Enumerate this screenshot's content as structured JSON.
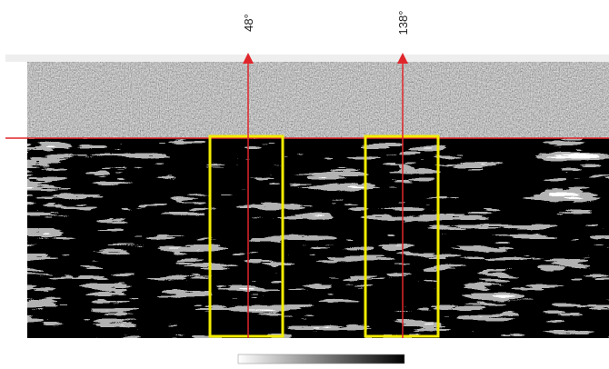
{
  "figure": {
    "markers": [
      {
        "label": "48°"
      },
      {
        "label": "138°"
      }
    ]
  }
}
